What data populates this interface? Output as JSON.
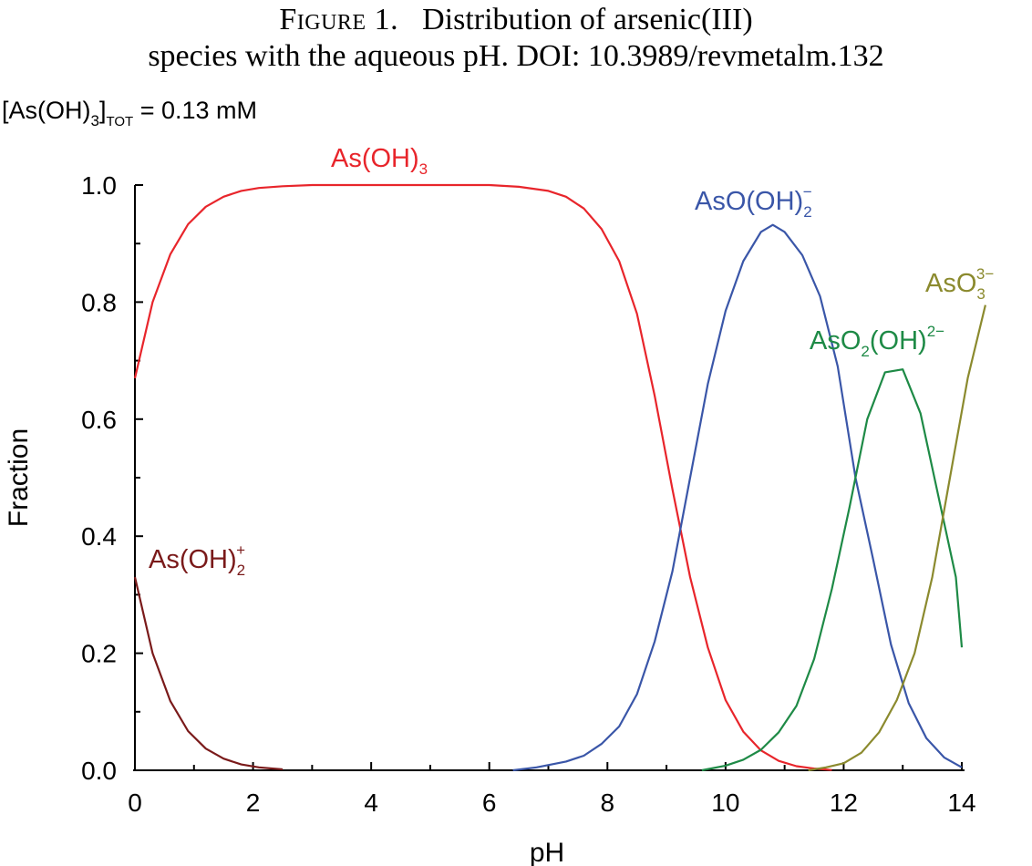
{
  "caption": {
    "label": "Figure 1.",
    "line1": "Distribution of arsenic(III)",
    "line2": "species with the aqueous pH. DOI: 10.3989/revmetalm.132"
  },
  "chart_data": {
    "type": "line",
    "title": "",
    "xlabel": "pH",
    "ylabel": "Fraction",
    "xlim": [
      0,
      14
    ],
    "ylim": [
      0,
      1
    ],
    "xticks": [
      0,
      2,
      4,
      6,
      8,
      10,
      12,
      14
    ],
    "yticks": [
      0.0,
      0.2,
      0.4,
      0.6,
      0.8,
      1.0
    ],
    "ytick_labels": [
      "0.0",
      "0.2",
      "0.4",
      "0.6",
      "0.8",
      "1.0"
    ],
    "annotation": {
      "base": "[As(OH)",
      "sub1": "3",
      "mid": "]",
      "sub2": "TOT",
      "rest": " = 0.13 mM"
    },
    "grid": false,
    "legend": "none",
    "series": [
      {
        "name": "As(OH)2+",
        "label_parts": {
          "base": "As(OH)",
          "sub": "2",
          "sup": "+"
        },
        "color": "#7a1a1a",
        "points": [
          [
            0,
            0.33
          ],
          [
            0.3,
            0.2
          ],
          [
            0.6,
            0.118
          ],
          [
            0.9,
            0.067
          ],
          [
            1.2,
            0.037
          ],
          [
            1.5,
            0.02
          ],
          [
            1.8,
            0.01
          ],
          [
            2.1,
            0.005
          ],
          [
            2.5,
            0.0015
          ]
        ]
      },
      {
        "name": "As(OH)3",
        "label_parts": {
          "base": "As(OH)",
          "sub": "3",
          "sup": ""
        },
        "color": "#e8252b",
        "points": [
          [
            0,
            0.67
          ],
          [
            0.3,
            0.8
          ],
          [
            0.6,
            0.882
          ],
          [
            0.9,
            0.933
          ],
          [
            1.2,
            0.963
          ],
          [
            1.5,
            0.98
          ],
          [
            1.8,
            0.99
          ],
          [
            2.1,
            0.995
          ],
          [
            2.5,
            0.998
          ],
          [
            3.0,
            1.0
          ],
          [
            6.0,
            1.0
          ],
          [
            6.5,
            0.997
          ],
          [
            7.0,
            0.99
          ],
          [
            7.3,
            0.98
          ],
          [
            7.6,
            0.96
          ],
          [
            7.9,
            0.925
          ],
          [
            8.2,
            0.87
          ],
          [
            8.5,
            0.78
          ],
          [
            8.8,
            0.64
          ],
          [
            9.1,
            0.48
          ],
          [
            9.4,
            0.33
          ],
          [
            9.7,
            0.21
          ],
          [
            10.0,
            0.12
          ],
          [
            10.3,
            0.066
          ],
          [
            10.6,
            0.034
          ],
          [
            10.9,
            0.016
          ],
          [
            11.2,
            0.007
          ],
          [
            11.5,
            0.003
          ],
          [
            11.8,
            0.0005
          ]
        ]
      },
      {
        "name": "AsO(OH)2-",
        "label_parts": {
          "base": "AsO(OH)",
          "sub": "2",
          "sup": "−"
        },
        "color": "#3a56a8",
        "points": [
          [
            6.4,
            0.0
          ],
          [
            6.8,
            0.005
          ],
          [
            7.3,
            0.015
          ],
          [
            7.6,
            0.025
          ],
          [
            7.9,
            0.045
          ],
          [
            8.2,
            0.075
          ],
          [
            8.5,
            0.13
          ],
          [
            8.8,
            0.22
          ],
          [
            9.1,
            0.34
          ],
          [
            9.4,
            0.5
          ],
          [
            9.7,
            0.66
          ],
          [
            10.0,
            0.785
          ],
          [
            10.3,
            0.87
          ],
          [
            10.6,
            0.92
          ],
          [
            10.8,
            0.932
          ],
          [
            11.0,
            0.92
          ],
          [
            11.3,
            0.88
          ],
          [
            11.6,
            0.81
          ],
          [
            11.9,
            0.69
          ],
          [
            12.2,
            0.5
          ],
          [
            12.5,
            0.36
          ],
          [
            12.8,
            0.215
          ],
          [
            13.1,
            0.115
          ],
          [
            13.4,
            0.055
          ],
          [
            13.7,
            0.022
          ],
          [
            14.0,
            0.005
          ]
        ]
      },
      {
        "name": "AsO2(OH)2-",
        "label_parts": {
          "base": "AsO",
          "sub": "2",
          "mid": "(OH)",
          "sup": "2−"
        },
        "color": "#1e8a46",
        "points": [
          [
            9.6,
            0.0
          ],
          [
            10.0,
            0.008
          ],
          [
            10.3,
            0.018
          ],
          [
            10.6,
            0.035
          ],
          [
            10.9,
            0.065
          ],
          [
            11.2,
            0.11
          ],
          [
            11.5,
            0.19
          ],
          [
            11.8,
            0.31
          ],
          [
            12.1,
            0.45
          ],
          [
            12.4,
            0.6
          ],
          [
            12.7,
            0.68
          ],
          [
            13.0,
            0.685
          ],
          [
            13.3,
            0.61
          ],
          [
            13.6,
            0.47
          ],
          [
            13.9,
            0.33
          ],
          [
            14.0,
            0.21
          ]
        ]
      },
      {
        "name": "AsO33-",
        "label_parts": {
          "base": "AsO",
          "sub": "3",
          "sup": "3−"
        },
        "color": "#8b8a2e",
        "points": [
          [
            11.4,
            0.0
          ],
          [
            11.7,
            0.005
          ],
          [
            12.0,
            0.012
          ],
          [
            12.3,
            0.03
          ],
          [
            12.6,
            0.065
          ],
          [
            12.9,
            0.12
          ],
          [
            13.2,
            0.2
          ],
          [
            13.5,
            0.33
          ],
          [
            13.8,
            0.5
          ],
          [
            14.1,
            0.67
          ],
          [
            14.4,
            0.795
          ]
        ]
      }
    ]
  }
}
